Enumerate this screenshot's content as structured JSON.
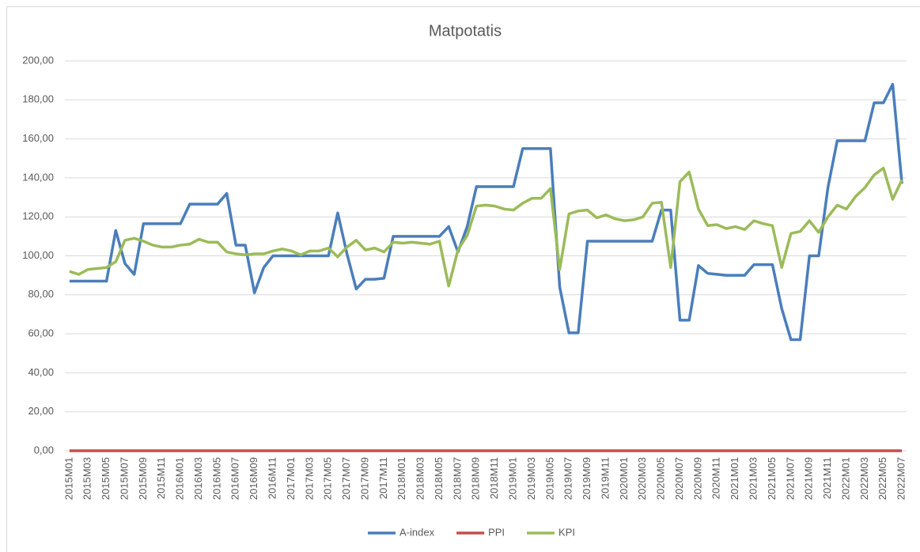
{
  "chart_data": {
    "type": "line",
    "title": "Matpotatis",
    "categories": [
      "2015M01",
      null,
      "2015M03",
      null,
      "2015M05",
      null,
      "2015M07",
      null,
      "2015M09",
      null,
      "2015M11",
      null,
      "2016M01",
      null,
      "2016M03",
      null,
      "2016M05",
      null,
      "2016M07",
      null,
      "2016M09",
      null,
      "2016M11",
      null,
      "2017M01",
      null,
      "2017M03",
      null,
      "2017M05",
      null,
      "2017M07",
      null,
      "2017M09",
      null,
      "2017M11",
      null,
      "2018M01",
      null,
      "2018M03",
      null,
      "2018M05",
      null,
      "2018M07",
      null,
      "2018M09",
      null,
      "2018M11",
      null,
      "2019M01",
      null,
      "2019M03",
      null,
      "2019M05",
      null,
      "2019M07",
      null,
      "2019M09",
      null,
      "2019M11",
      null,
      "2020M01",
      null,
      "2020M03",
      null,
      "2020M05",
      null,
      "2020M07",
      null,
      "2020M09",
      null,
      "2020M11",
      null,
      "2021M01",
      null,
      "2021M03",
      null,
      "2021M05",
      null,
      "2021M07",
      null,
      "2021M09",
      null,
      "2021M11",
      null,
      "2022M01",
      null,
      "2022M03",
      null,
      "2022M05",
      null,
      "2022M07"
    ],
    "series": [
      {
        "name": "A-index",
        "color": "#4a7ebb",
        "values": [
          87,
          87,
          87,
          87,
          87,
          113,
          96,
          90.5,
          116.5,
          116.5,
          116.5,
          116.5,
          116.5,
          126.5,
          126.5,
          126.5,
          126.5,
          132,
          105.5,
          105.5,
          81,
          94,
          100,
          100,
          100,
          100,
          100,
          100,
          100,
          122,
          101,
          83,
          88,
          88,
          88.5,
          110,
          110,
          110,
          110,
          110,
          110,
          115,
          102,
          115,
          135.5,
          135.5,
          135.5,
          135.5,
          135.5,
          155,
          155,
          155,
          155,
          84,
          60.5,
          60.5,
          107.5,
          107.5,
          107.5,
          107.5,
          107.5,
          107.5,
          107.5,
          107.5,
          123.5,
          123.5,
          67,
          67,
          95,
          91,
          90.5,
          90,
          90,
          90,
          95.5,
          95.5,
          95.5,
          73,
          57,
          57,
          100,
          100,
          135,
          159,
          159,
          159,
          159,
          178.5,
          178.5,
          188,
          137
        ]
      },
      {
        "name": "PPI",
        "color": "#c0504d",
        "values": [
          0,
          0,
          0,
          0,
          0,
          0,
          0,
          0,
          0,
          0,
          0,
          0,
          0,
          0,
          0,
          0,
          0,
          0,
          0,
          0,
          0,
          0,
          0,
          0,
          0,
          0,
          0,
          0,
          0,
          0,
          0,
          0,
          0,
          0,
          0,
          0,
          0,
          0,
          0,
          0,
          0,
          0,
          0,
          0,
          0,
          0,
          0,
          0,
          0,
          0,
          0,
          0,
          0,
          0,
          0,
          0,
          0,
          0,
          0,
          0,
          0,
          0,
          0,
          0,
          0,
          0,
          0,
          0,
          0,
          0,
          0,
          0,
          0,
          0,
          0,
          0,
          0,
          0,
          0,
          0,
          0,
          0,
          0,
          0,
          0,
          0,
          0,
          0,
          0,
          0,
          0
        ]
      },
      {
        "name": "KPI",
        "color": "#9bbb59",
        "values": [
          92,
          90.5,
          93,
          93.5,
          94,
          97,
          108,
          109,
          107.5,
          105.5,
          104.5,
          104.5,
          105.5,
          106,
          108.5,
          107,
          107,
          102,
          101,
          100.5,
          101,
          101,
          102.5,
          103.5,
          102.5,
          100.5,
          102.5,
          102.5,
          104,
          99.5,
          104.5,
          108,
          103,
          104,
          102,
          107,
          106.5,
          107,
          106.5,
          106,
          107.5,
          84.5,
          103,
          110.5,
          125.5,
          126,
          125.5,
          124,
          123.5,
          127,
          129.5,
          129.5,
          134.5,
          93,
          121.5,
          123,
          123.5,
          119.5,
          121,
          119,
          118,
          118.5,
          120,
          127,
          127.5,
          94,
          138,
          143,
          124,
          115.5,
          116,
          114,
          115,
          113.5,
          118,
          116.5,
          115.5,
          94,
          111.5,
          112.5,
          118,
          112,
          120,
          126,
          124,
          130.5,
          135,
          141.5,
          145,
          129,
          139
        ]
      }
    ],
    "ylim": [
      0,
      200
    ],
    "yticks": [
      {
        "value": 0,
        "label": "0,00"
      },
      {
        "value": 20,
        "label": "20,00"
      },
      {
        "value": 40,
        "label": "40,00"
      },
      {
        "value": 60,
        "label": "60,00"
      },
      {
        "value": 80,
        "label": "80,00"
      },
      {
        "value": 100,
        "label": "100,00"
      },
      {
        "value": 120,
        "label": "120,00"
      },
      {
        "value": 140,
        "label": "140,00"
      },
      {
        "value": 160,
        "label": "160,00"
      },
      {
        "value": 180,
        "label": "180,00"
      },
      {
        "value": 200,
        "label": "200,00"
      }
    ],
    "grid": true,
    "legend": "bottom"
  }
}
